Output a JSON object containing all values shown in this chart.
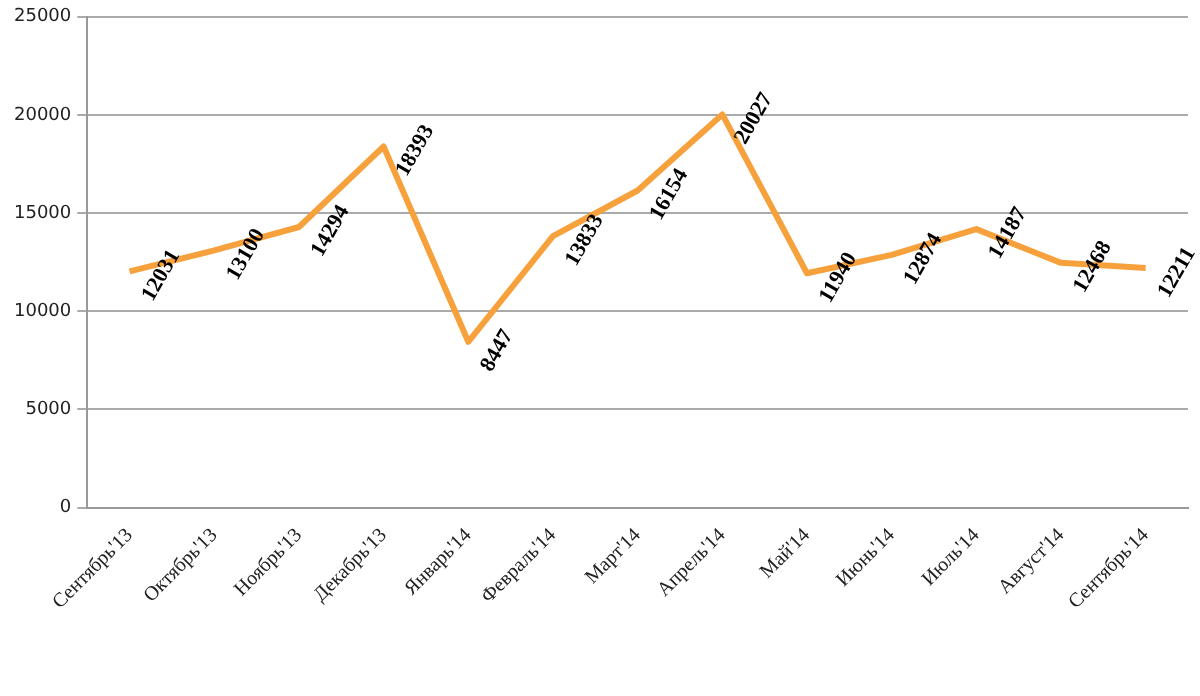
{
  "chart_data": {
    "type": "line",
    "categories": [
      "Сентябрь'13",
      "Октябрь'13",
      "Ноябрь'13",
      "Декабрь'13",
      "Январь'14",
      "Февраль'14",
      "Март'14",
      "Апрель'14",
      "Май'14",
      "Июнь'14",
      "Июль'14",
      "Август'14",
      "Сентябрь'14"
    ],
    "series": [
      {
        "color": "#f7a13d",
        "values": [
          12031,
          13100,
          14294,
          18393,
          8447,
          13833,
          16154,
          20027,
          11940,
          12874,
          14187,
          12468,
          12211
        ]
      }
    ],
    "ylim": [
      0,
      25000
    ],
    "yticks": [
      0,
      5000,
      10000,
      15000,
      20000,
      25000
    ],
    "grid": "y",
    "legend": false,
    "marker": "none",
    "line_style": "solid",
    "data_labels": true
  }
}
